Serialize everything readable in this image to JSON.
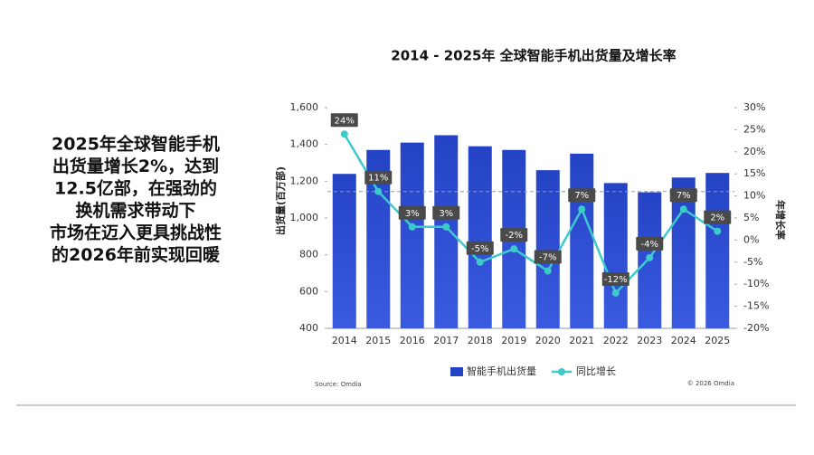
{
  "slide": {
    "headline": [
      "2025年全球智能手机",
      "出货量增长2%，达到",
      "12.5亿部，在强劲的",
      "换机需求带动下",
      "市场在迈入更具挑战性",
      "的2026年前实现回暖"
    ]
  },
  "chart_data": {
    "type": "combo",
    "title": "2014 - 2025年 全球智能手机出货量及增长率",
    "ylabel": "出货量(百万部)",
    "y2label": "年增长率",
    "source": "Source: Omdia",
    "copyright": "© 2026 Omdia",
    "categories": [
      "2014",
      "2015",
      "2016",
      "2017",
      "2018",
      "2019",
      "2020",
      "2021",
      "2022",
      "2023",
      "2024",
      "2025"
    ],
    "series": [
      {
        "name": "智能手机出货量",
        "color": "#2443c4",
        "values": [
          1240,
          1370,
          1410,
          1450,
          1390,
          1370,
          1260,
          1350,
          1190,
          1140,
          1220,
          1245
        ]
      },
      {
        "name": "同比增长",
        "color": "#3ccacb",
        "axis": "y2",
        "values": [
          24,
          11,
          3,
          3,
          -5,
          -2,
          -7,
          7,
          -12,
          -4,
          7,
          2
        ],
        "value_labels": [
          "24%",
          "11%",
          "3%",
          "3%",
          "-5%",
          "-2%",
          "-7%",
          "7%",
          "-12%",
          "-4%",
          "7%",
          "2%"
        ]
      }
    ],
    "ylim": [
      400,
      1600
    ],
    "yticks": [
      400,
      600,
      800,
      {
        "value": 1000,
        "label": "1,000"
      },
      {
        "value": 1200,
        "label": "1,200"
      },
      {
        "value": 1400,
        "label": "1,400"
      },
      {
        "value": 1600,
        "label": "1,600"
      }
    ],
    "y2lim": [
      -20,
      30
    ],
    "y2ticks": [
      {
        "value": -20,
        "label": "-20%"
      },
      {
        "value": -15,
        "label": "-15%"
      },
      {
        "value": -10,
        "label": "-10%"
      },
      {
        "value": -5,
        "label": "-5%"
      },
      {
        "value": 0,
        "label": "0%"
      },
      {
        "value": 5,
        "label": "5%"
      },
      {
        "value": 10,
        "label": "10%"
      },
      {
        "value": 15,
        "label": "15%"
      },
      {
        "value": 20,
        "label": "20%"
      },
      {
        "value": 25,
        "label": "25%"
      },
      {
        "value": 30,
        "label": "30%"
      }
    ],
    "y2_reference": 11,
    "grid": false,
    "legend": "bottom"
  }
}
